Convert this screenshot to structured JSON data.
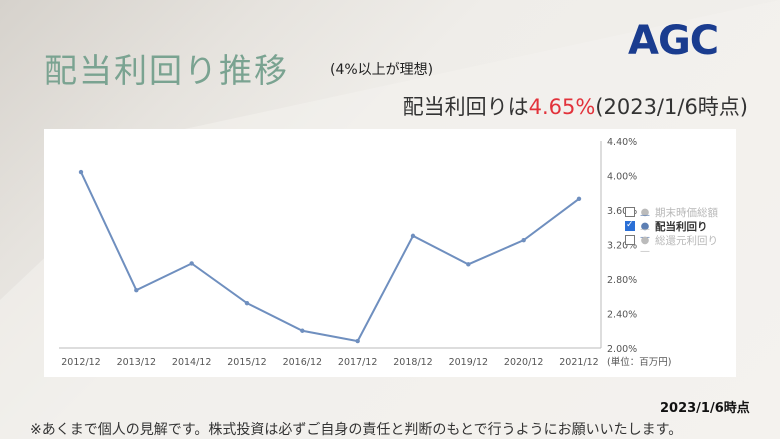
{
  "page": {
    "title": "配当利回り推移",
    "note": "(4%以上が理想)",
    "logo": "AGC",
    "headline_prefix": "配当利回りは",
    "headline_value": "4.65%",
    "headline_suffix": "(2023/1/6時点)",
    "date": "2023/1/6時点",
    "footnote": "※あくまで個人の見解です。株式投資は必ずご自身の責任と判断のもとで行うようにお願いいたします。"
  },
  "colors": {
    "title": "#7aa391",
    "highlight": "#e2323b",
    "line": "#6f8fbf",
    "logo": "#1a3c8f"
  },
  "chart_data": {
    "type": "line",
    "categories": [
      "2012/12",
      "2013/12",
      "2014/12",
      "2015/12",
      "2016/12",
      "2017/12",
      "2018/12",
      "2019/12",
      "2020/12",
      "2021/12"
    ],
    "series": [
      {
        "name": "配当利回り",
        "values": [
          4.04,
          2.67,
          2.98,
          2.52,
          2.2,
          2.08,
          3.3,
          2.97,
          3.25,
          3.73
        ]
      }
    ],
    "y_ticks": [
      "2.00%",
      "2.40%",
      "2.80%",
      "3.20%",
      "3.60%",
      "4.00%",
      "4.40%"
    ],
    "ylim": [
      2.0,
      4.4
    ],
    "unit_label": "(単位：百万円)",
    "legend": [
      {
        "label": "期末時価総額",
        "checked": false,
        "icon": "dot"
      },
      {
        "label": "配当利回り",
        "checked": true,
        "icon": "line-dot"
      },
      {
        "label": "総還元利回り",
        "checked": false,
        "icon": "line-dot"
      }
    ],
    "legend_position": "right",
    "grid": false
  }
}
